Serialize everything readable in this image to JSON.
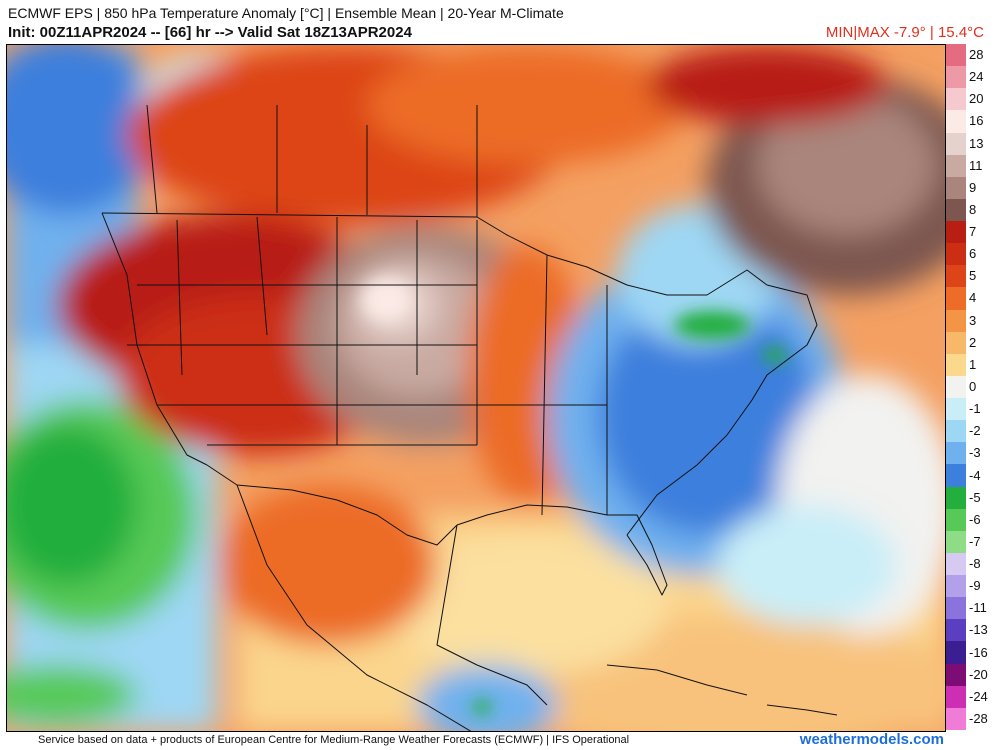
{
  "header": {
    "title_line1": "ECMWF EPS | 850 hPa Temperature Anomaly [°C] | Ensemble Mean | 20-Year M-Climate",
    "title_line2": "Init: 00Z11APR2024 -- [66] hr --> Valid Sat 18Z13APR2024",
    "minmax": "MIN|MAX -7.9° | 15.4°C"
  },
  "colorbar": {
    "labels": [
      "28",
      "24",
      "20",
      "16",
      "13",
      "11",
      "9",
      "8",
      "7",
      "6",
      "5",
      "4",
      "3",
      "2",
      "1",
      "0",
      "-1",
      "-2",
      "-3",
      "-4",
      "-5",
      "-6",
      "-7",
      "-8",
      "-9",
      "-11",
      "-13",
      "-16",
      "-20",
      "-24",
      "-28"
    ],
    "colors": [
      "#e56b80",
      "#ee99a6",
      "#f6c9cf",
      "#fbeae6",
      "#e6d2cc",
      "#c9aaa2",
      "#a9857c",
      "#7d574f",
      "#b81f12",
      "#cc2e14",
      "#dd4418",
      "#ec6c28",
      "#f49445",
      "#f8b86a",
      "#fbd98c",
      "#f2f2f0",
      "#c9eef8",
      "#9ed7f4",
      "#6fb1ee",
      "#3d7fdd",
      "#23ae3e",
      "#56c957",
      "#8fdc86",
      "#d6c9f2",
      "#b3a0ea",
      "#8b73de",
      "#5b3fc1",
      "#3a1e92",
      "#7d0d74",
      "#cc2fb4",
      "#f07cd8"
    ]
  },
  "map_legend_values": {
    "positive_max": 15.4,
    "negative_min": -7.9,
    "units": "°C"
  },
  "footer": {
    "credit": "Service based on data + products of European Centre for Medium-Range Weather Forecasts (ECMWF) | IFS Operational",
    "brand": "weathermodels.com"
  }
}
